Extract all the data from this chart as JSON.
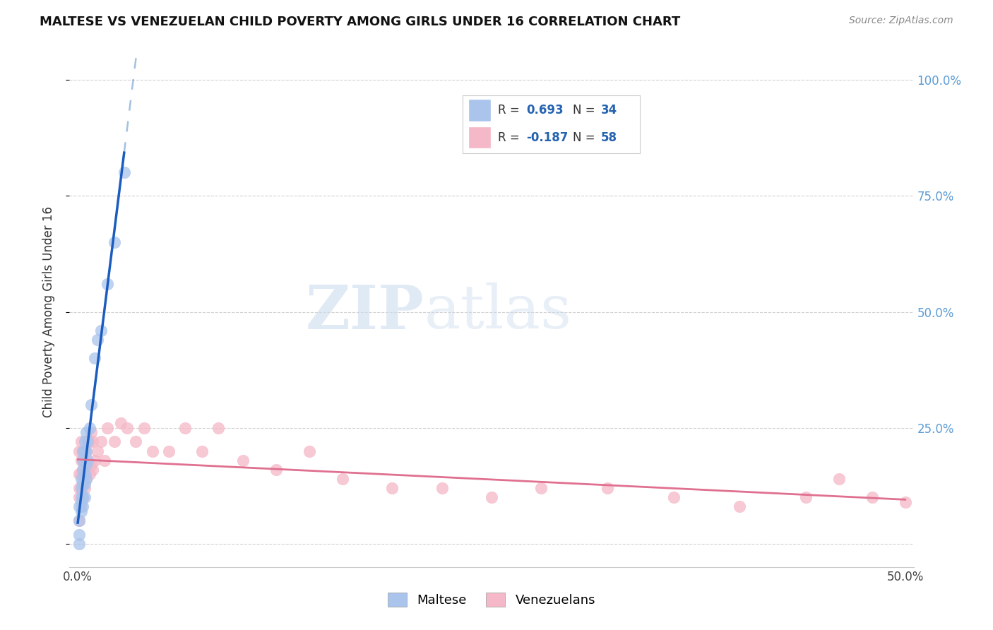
{
  "title": "MALTESE VS VENEZUELAN CHILD POVERTY AMONG GIRLS UNDER 16 CORRELATION CHART",
  "source": "Source: ZipAtlas.com",
  "ylabel": "Child Poverty Among Girls Under 16",
  "xlim": [
    -0.005,
    0.505
  ],
  "ylim": [
    -0.05,
    1.05
  ],
  "maltese_R": 0.693,
  "maltese_N": 34,
  "venezuelan_R": -0.187,
  "venezuelan_N": 58,
  "watermark_zip": "ZIP",
  "watermark_atlas": "atlas",
  "maltese_color": "#aac4ec",
  "maltese_edge": "#aac4ec",
  "maltese_line_color": "#1a5cbf",
  "maltese_dash_color": "#6699cc",
  "venezuelan_color": "#f5b8c8",
  "venezuelan_edge": "#f5b8c8",
  "venezuelan_line_color": "#e07090",
  "right_tick_color": "#5b9bd5",
  "legend_text_color": "#333333",
  "legend_val_color": "#2563b0",
  "maltese_x": [
    0.001,
    0.001,
    0.001,
    0.001,
    0.002,
    0.002,
    0.002,
    0.002,
    0.002,
    0.003,
    0.003,
    0.003,
    0.003,
    0.003,
    0.003,
    0.004,
    0.004,
    0.004,
    0.004,
    0.004,
    0.005,
    0.005,
    0.005,
    0.005,
    0.006,
    0.006,
    0.007,
    0.008,
    0.01,
    0.012,
    0.014,
    0.018,
    0.022,
    0.028
  ],
  "maltese_y": [
    0.0,
    0.02,
    0.05,
    0.08,
    0.07,
    0.09,
    0.1,
    0.12,
    0.14,
    0.08,
    0.1,
    0.13,
    0.16,
    0.18,
    0.2,
    0.1,
    0.13,
    0.15,
    0.2,
    0.22,
    0.14,
    0.17,
    0.2,
    0.24,
    0.18,
    0.22,
    0.25,
    0.3,
    0.4,
    0.44,
    0.46,
    0.56,
    0.65,
    0.8
  ],
  "venezuelan_x": [
    0.001,
    0.001,
    0.001,
    0.001,
    0.001,
    0.002,
    0.002,
    0.002,
    0.002,
    0.002,
    0.003,
    0.003,
    0.003,
    0.003,
    0.003,
    0.004,
    0.004,
    0.004,
    0.005,
    0.005,
    0.006,
    0.006,
    0.007,
    0.007,
    0.008,
    0.008,
    0.009,
    0.009,
    0.01,
    0.012,
    0.014,
    0.016,
    0.018,
    0.022,
    0.026,
    0.03,
    0.035,
    0.04,
    0.045,
    0.055,
    0.065,
    0.075,
    0.085,
    0.1,
    0.12,
    0.14,
    0.16,
    0.19,
    0.22,
    0.25,
    0.28,
    0.32,
    0.36,
    0.4,
    0.44,
    0.46,
    0.48,
    0.5
  ],
  "venezuelan_y": [
    0.05,
    0.1,
    0.12,
    0.15,
    0.2,
    0.08,
    0.12,
    0.15,
    0.18,
    0.22,
    0.1,
    0.13,
    0.16,
    0.18,
    0.2,
    0.12,
    0.15,
    0.18,
    0.14,
    0.2,
    0.16,
    0.22,
    0.15,
    0.22,
    0.17,
    0.24,
    0.16,
    0.22,
    0.18,
    0.2,
    0.22,
    0.18,
    0.25,
    0.22,
    0.26,
    0.25,
    0.22,
    0.25,
    0.2,
    0.2,
    0.25,
    0.2,
    0.25,
    0.18,
    0.16,
    0.2,
    0.14,
    0.12,
    0.12,
    0.1,
    0.12,
    0.12,
    0.1,
    0.08,
    0.1,
    0.14,
    0.1,
    0.09
  ]
}
